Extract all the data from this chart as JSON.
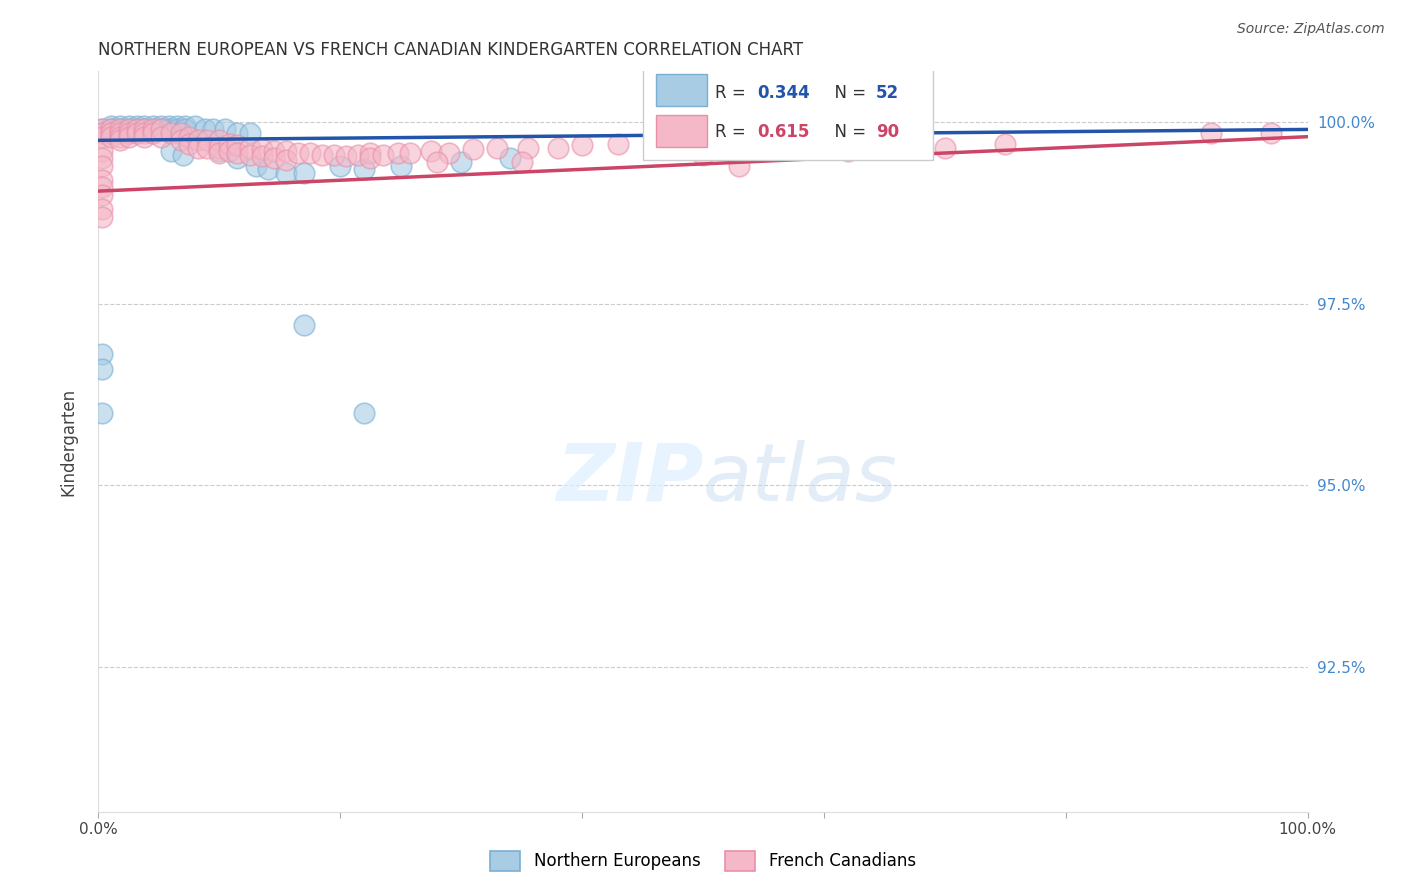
{
  "title": "NORTHERN EUROPEAN VS FRENCH CANADIAN KINDERGARTEN CORRELATION CHART",
  "source": "Source: ZipAtlas.com",
  "ylabel": "Kindergarten",
  "ytick_labels": [
    "100.0%",
    "97.5%",
    "95.0%",
    "92.5%"
  ],
  "ytick_values": [
    1.0,
    0.975,
    0.95,
    0.925
  ],
  "xlim": [
    0.0,
    1.0
  ],
  "ylim": [
    0.905,
    1.007
  ],
  "blue_R": 0.344,
  "blue_N": 52,
  "pink_R": 0.615,
  "pink_N": 90,
  "blue_color": "#a8cce4",
  "pink_color": "#f4b8c8",
  "blue_edge_color": "#7aafd4",
  "pink_edge_color": "#e890a8",
  "blue_line_color": "#2255aa",
  "pink_line_color": "#cc4466",
  "legend_label_blue": "Northern Europeans",
  "legend_label_pink": "French Canadians",
  "blue_points": [
    [
      0.003,
      0.999
    ],
    [
      0.003,
      0.9985
    ],
    [
      0.01,
      0.9995
    ],
    [
      0.01,
      0.999
    ],
    [
      0.01,
      0.9985
    ],
    [
      0.018,
      0.9995
    ],
    [
      0.018,
      0.999
    ],
    [
      0.025,
      0.9995
    ],
    [
      0.025,
      0.999
    ],
    [
      0.025,
      0.9985
    ],
    [
      0.032,
      0.9995
    ],
    [
      0.032,
      0.999
    ],
    [
      0.032,
      0.9985
    ],
    [
      0.038,
      0.9995
    ],
    [
      0.038,
      0.999
    ],
    [
      0.045,
      0.9995
    ],
    [
      0.045,
      0.999
    ],
    [
      0.045,
      0.9985
    ],
    [
      0.052,
      0.9995
    ],
    [
      0.052,
      0.999
    ],
    [
      0.058,
      0.9995
    ],
    [
      0.058,
      0.999
    ],
    [
      0.065,
      0.9995
    ],
    [
      0.065,
      0.999
    ],
    [
      0.072,
      0.9995
    ],
    [
      0.072,
      0.999
    ],
    [
      0.08,
      0.9995
    ],
    [
      0.088,
      0.999
    ],
    [
      0.095,
      0.999
    ],
    [
      0.105,
      0.999
    ],
    [
      0.115,
      0.9985
    ],
    [
      0.125,
      0.9985
    ],
    [
      0.06,
      0.996
    ],
    [
      0.07,
      0.9955
    ],
    [
      0.1,
      0.996
    ],
    [
      0.115,
      0.995
    ],
    [
      0.13,
      0.994
    ],
    [
      0.14,
      0.9935
    ],
    [
      0.155,
      0.993
    ],
    [
      0.17,
      0.993
    ],
    [
      0.2,
      0.994
    ],
    [
      0.22,
      0.9935
    ],
    [
      0.25,
      0.994
    ],
    [
      0.3,
      0.9945
    ],
    [
      0.34,
      0.995
    ],
    [
      0.17,
      0.972
    ],
    [
      0.003,
      0.968
    ],
    [
      0.003,
      0.966
    ],
    [
      0.003,
      0.96
    ],
    [
      0.22,
      0.96
    ]
  ],
  "pink_points": [
    [
      0.003,
      0.999
    ],
    [
      0.003,
      0.9985
    ],
    [
      0.003,
      0.998
    ],
    [
      0.003,
      0.996
    ],
    [
      0.003,
      0.995
    ],
    [
      0.003,
      0.994
    ],
    [
      0.003,
      0.992
    ],
    [
      0.003,
      0.991
    ],
    [
      0.003,
      0.99
    ],
    [
      0.003,
      0.988
    ],
    [
      0.003,
      0.987
    ],
    [
      0.01,
      0.999
    ],
    [
      0.01,
      0.9985
    ],
    [
      0.01,
      0.998
    ],
    [
      0.018,
      0.999
    ],
    [
      0.018,
      0.9985
    ],
    [
      0.018,
      0.998
    ],
    [
      0.018,
      0.9975
    ],
    [
      0.025,
      0.999
    ],
    [
      0.025,
      0.9985
    ],
    [
      0.025,
      0.998
    ],
    [
      0.032,
      0.999
    ],
    [
      0.032,
      0.9985
    ],
    [
      0.038,
      0.999
    ],
    [
      0.038,
      0.9985
    ],
    [
      0.038,
      0.998
    ],
    [
      0.045,
      0.999
    ],
    [
      0.045,
      0.9985
    ],
    [
      0.052,
      0.999
    ],
    [
      0.052,
      0.998
    ],
    [
      0.06,
      0.9985
    ],
    [
      0.068,
      0.9985
    ],
    [
      0.068,
      0.9975
    ],
    [
      0.075,
      0.998
    ],
    [
      0.075,
      0.997
    ],
    [
      0.082,
      0.9975
    ],
    [
      0.082,
      0.9965
    ],
    [
      0.09,
      0.9975
    ],
    [
      0.09,
      0.9965
    ],
    [
      0.1,
      0.9975
    ],
    [
      0.1,
      0.9965
    ],
    [
      0.1,
      0.9958
    ],
    [
      0.108,
      0.997
    ],
    [
      0.108,
      0.996
    ],
    [
      0.115,
      0.9968
    ],
    [
      0.115,
      0.9958
    ],
    [
      0.125,
      0.9965
    ],
    [
      0.125,
      0.9955
    ],
    [
      0.135,
      0.9963
    ],
    [
      0.135,
      0.9953
    ],
    [
      0.145,
      0.996
    ],
    [
      0.145,
      0.995
    ],
    [
      0.155,
      0.996
    ],
    [
      0.155,
      0.9948
    ],
    [
      0.165,
      0.9958
    ],
    [
      0.175,
      0.9958
    ],
    [
      0.185,
      0.9955
    ],
    [
      0.195,
      0.9955
    ],
    [
      0.205,
      0.9953
    ],
    [
      0.215,
      0.9955
    ],
    [
      0.225,
      0.9958
    ],
    [
      0.225,
      0.995
    ],
    [
      0.235,
      0.9955
    ],
    [
      0.248,
      0.9958
    ],
    [
      0.258,
      0.9958
    ],
    [
      0.275,
      0.996
    ],
    [
      0.29,
      0.9958
    ],
    [
      0.31,
      0.9963
    ],
    [
      0.33,
      0.9965
    ],
    [
      0.355,
      0.9965
    ],
    [
      0.38,
      0.9965
    ],
    [
      0.4,
      0.9968
    ],
    [
      0.43,
      0.997
    ],
    [
      0.46,
      0.997
    ],
    [
      0.49,
      0.997
    ],
    [
      0.28,
      0.9945
    ],
    [
      0.35,
      0.9945
    ],
    [
      0.5,
      0.9955
    ],
    [
      0.58,
      0.9965
    ],
    [
      0.62,
      0.996
    ],
    [
      0.65,
      0.9965
    ],
    [
      0.7,
      0.9965
    ],
    [
      0.75,
      0.997
    ],
    [
      0.53,
      0.994
    ],
    [
      0.92,
      0.9985
    ],
    [
      0.97,
      0.9985
    ]
  ]
}
